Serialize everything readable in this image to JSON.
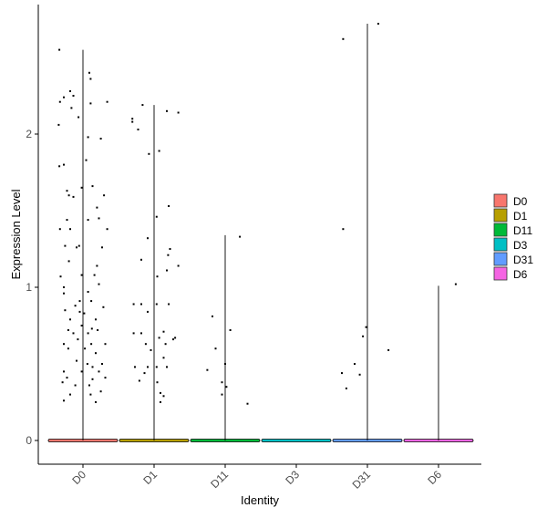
{
  "chart_data": {
    "type": "violin",
    "title": "",
    "xlabel": "Identity",
    "ylabel": "Expression Level",
    "ylim": [
      -0.15,
      2.9
    ],
    "yticks": [
      0,
      1,
      2
    ],
    "ytick_labels": [
      "0",
      "1",
      "2"
    ],
    "grid": false,
    "legend_position": "right",
    "categories": [
      "D0",
      "D1",
      "D11",
      "D3",
      "D31",
      "D6"
    ],
    "colors": [
      "#F8766D",
      "#B79F00",
      "#00BA38",
      "#00BFC4",
      "#619CFF",
      "#F564E3"
    ],
    "legend": {
      "entries": [
        "D0",
        "D1",
        "D11",
        "D3",
        "D31",
        "D6"
      ]
    },
    "series": [
      {
        "name": "D0",
        "max": 2.55,
        "points": [
          [
            -0.37,
            2.55
          ],
          [
            -0.3,
            2.24
          ],
          [
            -0.36,
            2.21
          ],
          [
            -0.2,
            2.28
          ],
          [
            -0.15,
            2.25
          ],
          [
            0.1,
            2.4
          ],
          [
            0.12,
            2.36
          ],
          [
            0.38,
            2.21
          ],
          [
            -0.38,
            2.06
          ],
          [
            -0.07,
            2.11
          ],
          [
            0.28,
            1.97
          ],
          [
            0.08,
            1.98
          ],
          [
            0.12,
            2.2
          ],
          [
            -0.18,
            2.17
          ],
          [
            0.05,
            1.83
          ],
          [
            -0.37,
            1.79
          ],
          [
            -0.3,
            1.8
          ],
          [
            -0.25,
            1.63
          ],
          [
            -0.22,
            1.6
          ],
          [
            -0.15,
            1.59
          ],
          [
            -0.02,
            1.65
          ],
          [
            0.15,
            1.66
          ],
          [
            0.33,
            1.6
          ],
          [
            0.22,
            1.52
          ],
          [
            -0.36,
            1.38
          ],
          [
            -0.25,
            1.44
          ],
          [
            -0.2,
            1.38
          ],
          [
            0.08,
            1.44
          ],
          [
            0.25,
            1.45
          ],
          [
            0.38,
            1.38
          ],
          [
            -0.28,
            1.27
          ],
          [
            -0.1,
            1.26
          ],
          [
            -0.06,
            1.27
          ],
          [
            0.3,
            1.26
          ],
          [
            -0.22,
            1.17
          ],
          [
            0.22,
            1.14
          ],
          [
            0.18,
            1.08
          ],
          [
            -0.35,
            1.07
          ],
          [
            -0.3,
            1.0
          ],
          [
            -0.02,
            1.08
          ],
          [
            0.25,
            1.02
          ],
          [
            -0.3,
            0.96
          ],
          [
            0.08,
            0.97
          ],
          [
            0.13,
            0.91
          ],
          [
            -0.05,
            0.91
          ],
          [
            -0.12,
            0.88
          ],
          [
            0.32,
            0.87
          ],
          [
            -0.28,
            0.85
          ],
          [
            -0.05,
            0.84
          ],
          [
            0.02,
            0.83
          ],
          [
            -0.2,
            0.79
          ],
          [
            0.2,
            0.79
          ],
          [
            -0.02,
            0.75
          ],
          [
            0.08,
            0.7
          ],
          [
            0.14,
            0.73
          ],
          [
            -0.23,
            0.72
          ],
          [
            -0.15,
            0.7
          ],
          [
            0.23,
            0.72
          ],
          [
            -0.3,
            0.63
          ],
          [
            -0.08,
            0.66
          ],
          [
            0.13,
            0.63
          ],
          [
            0.35,
            0.63
          ],
          [
            -0.23,
            0.6
          ],
          [
            0.03,
            0.6
          ],
          [
            0.2,
            0.57
          ],
          [
            -0.1,
            0.52
          ],
          [
            0.3,
            0.5
          ],
          [
            0.07,
            0.5
          ],
          [
            0.15,
            0.48
          ],
          [
            -0.02,
            0.45
          ],
          [
            -0.3,
            0.45
          ],
          [
            0.25,
            0.45
          ],
          [
            -0.25,
            0.41
          ],
          [
            0.35,
            0.41
          ],
          [
            0.15,
            0.4
          ],
          [
            -0.32,
            0.38
          ],
          [
            -0.12,
            0.36
          ],
          [
            0.1,
            0.36
          ],
          [
            0.28,
            0.32
          ],
          [
            -0.2,
            0.3
          ],
          [
            0.12,
            0.3
          ],
          [
            -0.3,
            0.26
          ],
          [
            0.2,
            0.25
          ]
        ]
      },
      {
        "name": "D1",
        "max": 2.19,
        "points": [
          [
            -0.34,
            2.1
          ],
          [
            -0.34,
            2.08
          ],
          [
            -0.25,
            2.03
          ],
          [
            -0.18,
            2.19
          ],
          [
            0.2,
            2.15
          ],
          [
            0.38,
            2.14
          ],
          [
            0.08,
            1.89
          ],
          [
            -0.08,
            1.87
          ],
          [
            0.04,
            1.46
          ],
          [
            0.23,
            1.53
          ],
          [
            -0.1,
            1.32
          ],
          [
            0.25,
            1.25
          ],
          [
            0.22,
            1.21
          ],
          [
            -0.2,
            1.18
          ],
          [
            0.38,
            1.14
          ],
          [
            0.2,
            1.11
          ],
          [
            0.05,
            1.07
          ],
          [
            -0.32,
            0.89
          ],
          [
            -0.2,
            0.89
          ],
          [
            0.04,
            0.89
          ],
          [
            0.23,
            0.89
          ],
          [
            -0.1,
            0.84
          ],
          [
            -0.2,
            0.7
          ],
          [
            -0.32,
            0.7
          ],
          [
            0.15,
            0.71
          ],
          [
            0.08,
            0.67
          ],
          [
            0.3,
            0.66
          ],
          [
            0.33,
            0.67
          ],
          [
            0.18,
            0.63
          ],
          [
            -0.13,
            0.63
          ],
          [
            -0.05,
            0.59
          ],
          [
            0.15,
            0.54
          ],
          [
            -0.3,
            0.48
          ],
          [
            -0.1,
            0.48
          ],
          [
            0.04,
            0.48
          ],
          [
            0.2,
            0.48
          ],
          [
            -0.15,
            0.44
          ],
          [
            -0.23,
            0.39
          ],
          [
            0.05,
            0.38
          ],
          [
            0.1,
            0.31
          ],
          [
            0.15,
            0.29
          ],
          [
            0.1,
            0.25
          ]
        ]
      },
      {
        "name": "D11",
        "max": 1.34,
        "points": [
          [
            0.23,
            1.33
          ],
          [
            -0.2,
            0.81
          ],
          [
            -0.15,
            0.6
          ],
          [
            0.08,
            0.72
          ],
          [
            0.0,
            0.5
          ],
          [
            -0.28,
            0.46
          ],
          [
            -0.05,
            0.38
          ],
          [
            0.02,
            0.35
          ],
          [
            -0.05,
            0.3
          ],
          [
            0.35,
            0.24
          ]
        ]
      },
      {
        "name": "D3",
        "max": 0,
        "points": []
      },
      {
        "name": "D31",
        "max": 2.72,
        "points": [
          [
            0.17,
            2.72
          ],
          [
            -0.38,
            2.62
          ],
          [
            -0.38,
            1.38
          ],
          [
            -0.02,
            0.74
          ],
          [
            -0.07,
            0.68
          ],
          [
            0.33,
            0.59
          ],
          [
            -0.2,
            0.5
          ],
          [
            -0.4,
            0.44
          ],
          [
            -0.12,
            0.43
          ],
          [
            -0.33,
            0.34
          ]
        ]
      },
      {
        "name": "D6",
        "max": 1.01,
        "points": [
          [
            0.27,
            1.02
          ]
        ]
      }
    ]
  }
}
